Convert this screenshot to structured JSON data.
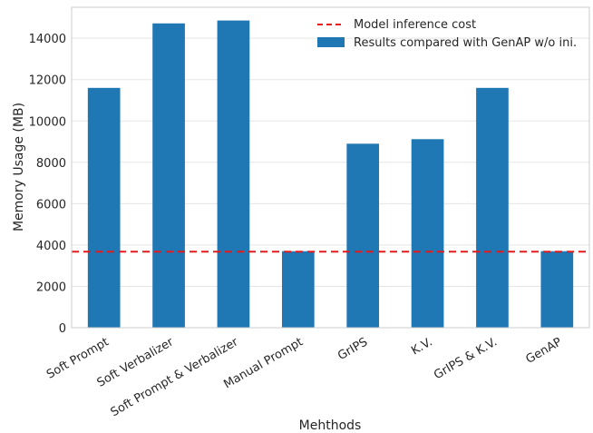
{
  "chart_data": {
    "type": "bar",
    "title": "",
    "xlabel": "Mehthods",
    "ylabel": "Memory Usage (MB)",
    "categories": [
      "Soft Prompt",
      "Soft Verbalizer",
      "Soft Prompt & Verbalizer",
      "Manual Prompt",
      "GrIPS",
      "K.V.",
      "GrIPS & K.V.",
      "GenAP"
    ],
    "series": [
      {
        "name": "Results compared with GenAP w/o ini.",
        "values": [
          11600,
          14720,
          14860,
          3700,
          8900,
          9120,
          11600,
          3700
        ],
        "color": "#1f77b4"
      }
    ],
    "reference_lines": [
      {
        "name": "Model inference cost",
        "value": 3680,
        "color": "#e41a1c",
        "style": "dashed"
      }
    ],
    "ylim": [
      0,
      15500
    ],
    "yticks": [
      0,
      2000,
      4000,
      6000,
      8000,
      10000,
      12000,
      14000
    ],
    "grid": "horizontal",
    "legend_position": "top-right"
  }
}
